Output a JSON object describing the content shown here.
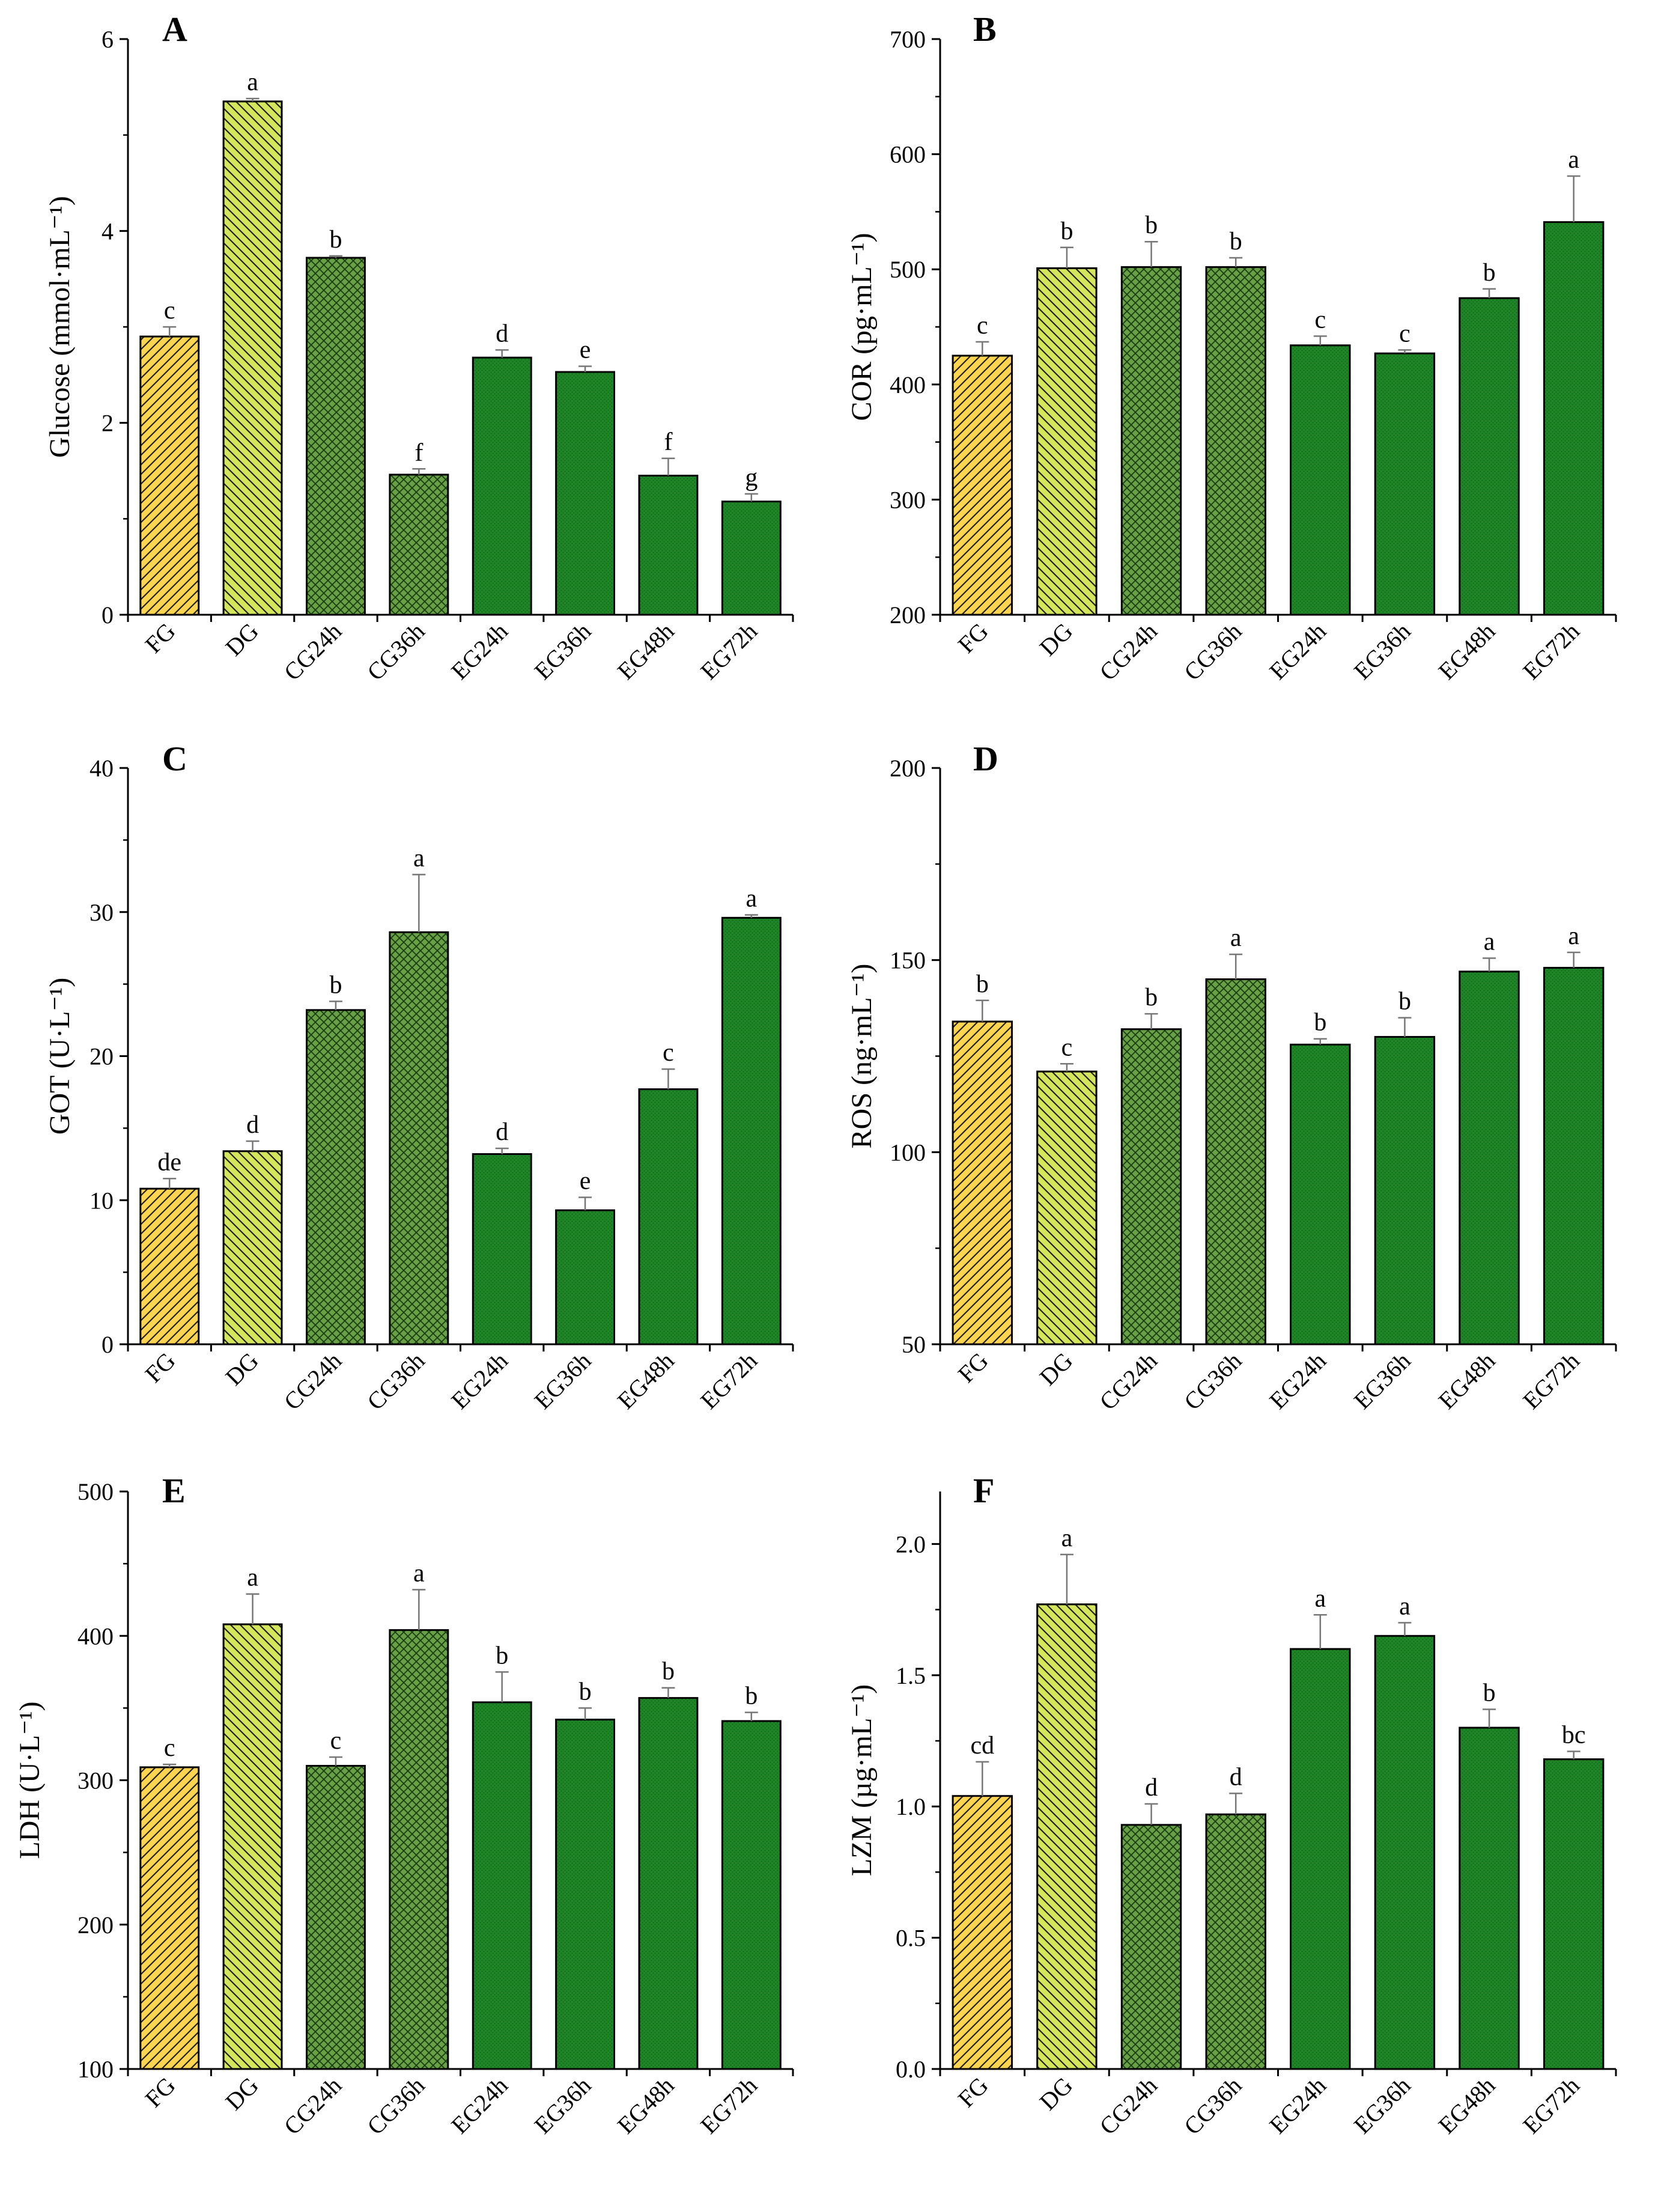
{
  "colors": {
    "fg": "#ffd44f",
    "dg": "#d3e65c",
    "cg": "#68a046",
    "eg": "#1e8627",
    "stroke": "#000000",
    "errorbar": "#777777"
  },
  "chart_data": [
    {
      "panel": "A",
      "type": "bar",
      "ylabel": "Glucose (mmol·mL⁻¹)",
      "ylim": [
        0,
        6
      ],
      "yticks": [
        "0",
        "2",
        "4",
        "6"
      ],
      "categories": [
        "FG",
        "DG",
        "CG24h",
        "CG36h",
        "EG24h",
        "EG36h",
        "EG48h",
        "EG72h"
      ],
      "values": [
        2.9,
        5.35,
        3.72,
        1.46,
        2.68,
        2.53,
        1.45,
        1.18
      ],
      "errors": [
        0.1,
        0.03,
        0.02,
        0.06,
        0.08,
        0.06,
        0.18,
        0.08
      ],
      "labels": [
        "c",
        "a",
        "b",
        "f",
        "d",
        "e",
        "f",
        "g"
      ]
    },
    {
      "panel": "B",
      "type": "bar",
      "ylabel": "COR (pg·mL⁻¹)",
      "ylim": [
        200,
        700
      ],
      "yticks": [
        "200",
        "300",
        "400",
        "500",
        "600",
        "700"
      ],
      "categories": [
        "FG",
        "DG",
        "CG24h",
        "CG36h",
        "EG24h",
        "EG36h",
        "EG48h",
        "EG72h"
      ],
      "values": [
        425,
        501,
        502,
        502,
        434,
        427,
        475,
        541
      ],
      "errors": [
        12,
        18,
        22,
        8,
        8,
        3,
        8,
        40
      ],
      "labels": [
        "c",
        "b",
        "b",
        "b",
        "c",
        "c",
        "b",
        "a"
      ]
    },
    {
      "panel": "C",
      "type": "bar",
      "ylabel": "GOT (U·L⁻¹)",
      "ylim": [
        0,
        40
      ],
      "yticks": [
        "0",
        "10",
        "20",
        "30",
        "40"
      ],
      "categories": [
        "FG",
        "DG",
        "CG24h",
        "CG36h",
        "EG24h",
        "EG36h",
        "EG48h",
        "EG72h"
      ],
      "values": [
        10.8,
        13.4,
        23.2,
        28.6,
        13.2,
        9.3,
        17.7,
        29.6
      ],
      "errors": [
        0.7,
        0.7,
        0.6,
        4.0,
        0.4,
        0.9,
        1.4,
        0.2
      ],
      "labels": [
        "de",
        "d",
        "b",
        "a",
        "d",
        "e",
        "c",
        "a"
      ]
    },
    {
      "panel": "D",
      "type": "bar",
      "ylabel": "ROS (ng·mL⁻¹)",
      "ylim": [
        50,
        200
      ],
      "yticks": [
        "50",
        "100",
        "150",
        "200"
      ],
      "categories": [
        "FG",
        "DG",
        "CG24h",
        "CG36h",
        "EG24h",
        "EG36h",
        "EG48h",
        "EG72h"
      ],
      "values": [
        134,
        121,
        132,
        145,
        128,
        130,
        147,
        148
      ],
      "errors": [
        5.5,
        2.0,
        4.0,
        6.5,
        1.5,
        5.0,
        3.5,
        4.0
      ],
      "labels": [
        "b",
        "c",
        "b",
        "a",
        "b",
        "b",
        "a",
        "a"
      ]
    },
    {
      "panel": "E",
      "type": "bar",
      "ylabel": "LDH (U·L⁻¹)",
      "ylim": [
        100,
        500
      ],
      "yticks": [
        "100",
        "200",
        "300",
        "400",
        "500"
      ],
      "categories": [
        "FG",
        "DG",
        "CG24h",
        "CG36h",
        "EG24h",
        "EG36h",
        "EG48h",
        "EG72h"
      ],
      "values": [
        309,
        408,
        310,
        404,
        354,
        342,
        357,
        341
      ],
      "errors": [
        2,
        21,
        6,
        28,
        21,
        8,
        7,
        6
      ],
      "labels": [
        "c",
        "a",
        "c",
        "a",
        "b",
        "b",
        "b",
        "b"
      ]
    },
    {
      "panel": "F",
      "type": "bar",
      "ylabel": "LZM (µg·mL⁻¹)",
      "ylim": [
        0,
        2.2
      ],
      "yticks": [
        "0.0",
        "0.5",
        "1.0",
        "1.5",
        "2.0"
      ],
      "categories": [
        "FG",
        "DG",
        "CG24h",
        "CG36h",
        "EG24h",
        "EG36h",
        "EG48h",
        "EG72h"
      ],
      "values": [
        1.04,
        1.77,
        0.93,
        0.97,
        1.6,
        1.65,
        1.3,
        1.18
      ],
      "errors": [
        0.13,
        0.19,
        0.08,
        0.08,
        0.13,
        0.05,
        0.07,
        0.03
      ],
      "labels": [
        "cd",
        "a",
        "d",
        "d",
        "a",
        "a",
        "b",
        "bc"
      ]
    }
  ]
}
